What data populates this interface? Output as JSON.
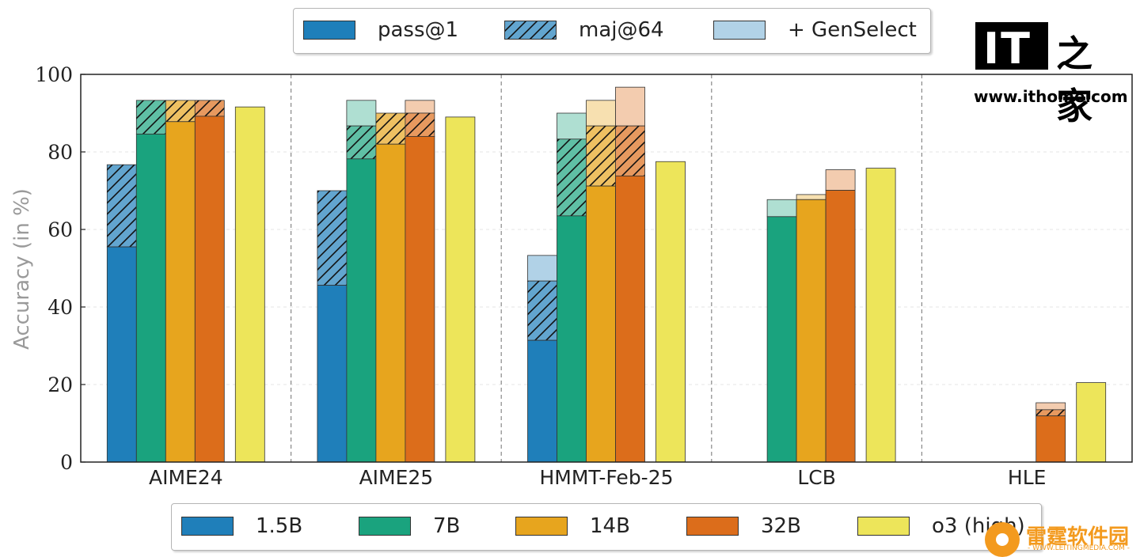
{
  "chart_data": {
    "type": "bar",
    "categories": [
      "AIME24",
      "AIME25",
      "HMMT-Feb-25",
      "LCB",
      "HLE"
    ],
    "ylabel": "Accuracy (in %)",
    "xlabel": "",
    "ylim": [
      0,
      100
    ],
    "yticks": [
      0,
      20,
      40,
      60,
      80,
      100
    ],
    "grid": true,
    "models": [
      {
        "name": "1.5B",
        "color": "#1f7fba",
        "pass1": [
          55.5,
          45.6,
          31.4,
          null,
          null
        ],
        "maj64": [
          76.7,
          70.0,
          46.7,
          null,
          null
        ],
        "genselect": [
          76.7,
          70.0,
          53.3,
          null,
          null
        ]
      },
      {
        "name": "7B",
        "color": "#1aa37e",
        "pass1": [
          84.6,
          78.2,
          63.5,
          63.3,
          null
        ],
        "maj64": [
          93.3,
          86.7,
          83.3,
          63.3,
          null
        ],
        "genselect": [
          93.3,
          93.3,
          90.0,
          67.7,
          null
        ]
      },
      {
        "name": "14B",
        "color": "#e7a51e",
        "pass1": [
          87.8,
          82.0,
          71.2,
          67.7,
          null
        ],
        "maj64": [
          93.3,
          90.0,
          86.7,
          67.7,
          null
        ],
        "genselect": [
          93.3,
          90.0,
          93.3,
          69.0,
          null
        ]
      },
      {
        "name": "32B",
        "color": "#dc6d1b",
        "pass1": [
          89.2,
          84.0,
          73.8,
          70.1,
          11.9
        ],
        "maj64": [
          93.3,
          90.0,
          86.7,
          70.1,
          13.5
        ],
        "genselect": [
          93.3,
          93.3,
          96.7,
          75.4,
          15.3
        ]
      },
      {
        "name": "o3 (high)",
        "color": "#ede55a",
        "pass1": [
          91.6,
          89.0,
          77.5,
          75.8,
          20.5
        ]
      }
    ]
  },
  "legend_top": [
    {
      "label": "pass@1",
      "style": "solid"
    },
    {
      "label": "maj@64",
      "style": "hatched"
    },
    {
      "label": "+ GenSelect",
      "style": "light"
    }
  ],
  "legend_bottom": [
    {
      "label": "1.5B",
      "color": "#1f7fba"
    },
    {
      "label": "7B",
      "color": "#1aa37e"
    },
    {
      "label": "14B",
      "color": "#e7a51e"
    },
    {
      "label": "32B",
      "color": "#dc6d1b"
    },
    {
      "label": "o3 (high)",
      "color": "#ede55a"
    }
  ],
  "legend_top_color": "#1f7fba",
  "watermark_ithome": {
    "letters": "IT",
    "home": "之家",
    "url": "www.ithome.com"
  },
  "watermark_leiting": {
    "name": "雷霆软件园",
    "url": "- WWW.LEITINGMEDIA.COM -"
  }
}
